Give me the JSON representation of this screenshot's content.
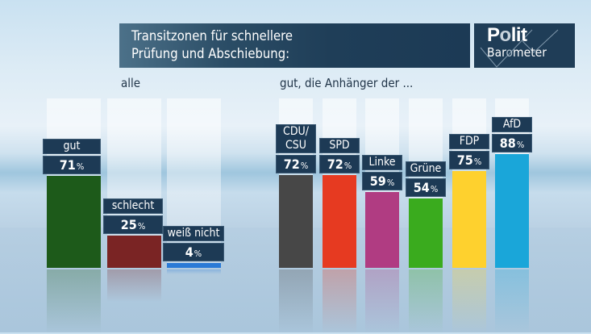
{
  "header": {
    "title_line1": "Transitzonen für schnellere",
    "title_line2": "Prüfung und Abschiebung:",
    "logo_top": "Polit",
    "logo_bottom": "Barometer"
  },
  "chart_data": [
    {
      "type": "bar",
      "title": "alle",
      "categories": [
        "gut",
        "schlecht",
        "weiß nicht"
      ],
      "values": [
        71,
        25,
        4
      ],
      "unit": "%",
      "colors": [
        "#1d5a1a",
        "#7a2424",
        "#2a7ad6"
      ],
      "ylim": [
        0,
        100
      ]
    },
    {
      "type": "bar",
      "title": "gut, die Anhänger der ...",
      "categories": [
        "CDU/\nCSU",
        "SPD",
        "Linke",
        "Grüne",
        "FDP",
        "AfD"
      ],
      "values": [
        72,
        72,
        59,
        54,
        75,
        88
      ],
      "unit": "%",
      "colors": [
        "#474747",
        "#e63a21",
        "#b03c82",
        "#3aab1e",
        "#fed12e",
        "#1aa6d9"
      ],
      "ylim": [
        0,
        100
      ]
    }
  ]
}
